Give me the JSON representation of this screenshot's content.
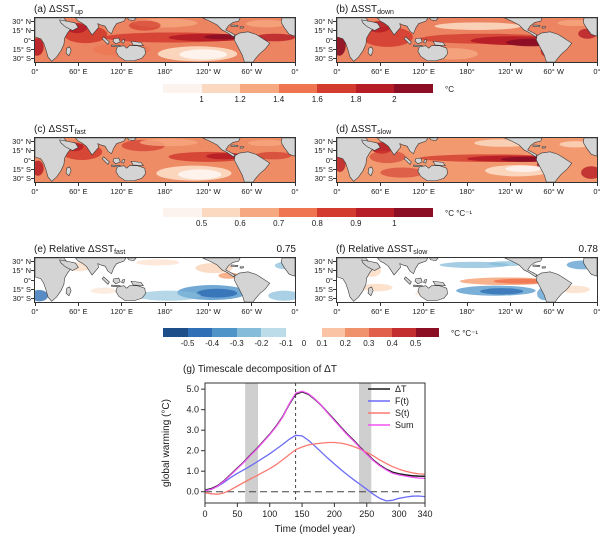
{
  "figure": {
    "maps": {
      "lat_ticks": [
        "30° N",
        "15° N",
        "0°",
        "15° S",
        "30° S"
      ],
      "lon_ticks": [
        "0°",
        "60° E",
        "120° E",
        "180°",
        "120° W",
        "60° W",
        "0°"
      ],
      "land_color": "#d4d4d4",
      "panels": [
        {
          "id": "(a)",
          "main": "ΔSST",
          "sub": "up",
          "corr": ""
        },
        {
          "id": "(b)",
          "main": "ΔSST",
          "sub": "down",
          "corr": ""
        },
        {
          "id": "(c)",
          "main": "ΔSST",
          "sub": "fast",
          "corr": ""
        },
        {
          "id": "(d)",
          "main": "ΔSST",
          "sub": "slow",
          "corr": ""
        },
        {
          "id": "(e)",
          "main": "Relative ΔSST",
          "sub": "fast",
          "corr": "0.75"
        },
        {
          "id": "(f)",
          "main": "Relative ΔSST",
          "sub": "slow",
          "corr": "0.78"
        }
      ]
    },
    "colorbars": [
      {
        "ticks": [
          "1",
          "1.2",
          "1.4",
          "1.6",
          "1.8",
          "2"
        ],
        "unit": "°C",
        "colors": [
          "#fdf3ee",
          "#fbd9c1",
          "#f6a880",
          "#ee7550",
          "#d23b2e",
          "#b71d26",
          "#8b0e25"
        ]
      },
      {
        "ticks": [
          "0.5",
          "0.6",
          "0.7",
          "0.8",
          "0.9",
          "1"
        ],
        "unit": "°C °C⁻¹",
        "colors": [
          "#fdf3ee",
          "#fbd9c1",
          "#f6a880",
          "#ee7550",
          "#d23b2e",
          "#b71d26",
          "#8b0e25"
        ]
      },
      {
        "neg_ticks": [
          "-0.5",
          "-0.4",
          "-0.3",
          "-0.2",
          "-0.1"
        ],
        "zero": "0",
        "pos_ticks": [
          "0.1",
          "0.2",
          "0.3",
          "0.4",
          "0.5"
        ],
        "unit": "°C °C⁻¹",
        "neg_colors": [
          "#1d4e89",
          "#2f6fb5",
          "#4e94c9",
          "#85bcd9",
          "#bddcea"
        ],
        "pos_colors": [
          "#f9c3a4",
          "#f0936c",
          "#e0604a",
          "#c42d30",
          "#8b0e25"
        ]
      }
    ]
  },
  "chart_data": {
    "type": "line",
    "title": "(g) Timescale decomposition of ΔT",
    "xlabel": "Time (model year)",
    "ylabel": "global warming (°C)",
    "xlim": [
      0,
      340
    ],
    "ylim": [
      -0.55,
      5.3
    ],
    "xticks": [
      0,
      50,
      100,
      150,
      200,
      250,
      300,
      340
    ],
    "yticks": [
      "0.0",
      "1.0",
      "2.0",
      "3.0",
      "4.0",
      "5.0"
    ],
    "ytick_values": [
      0,
      1,
      2,
      3,
      4,
      5
    ],
    "grid": false,
    "legend_position": "top-right",
    "vline_x": 140,
    "hline_y": 0,
    "shaded_bands": [
      [
        62,
        82
      ],
      [
        238,
        257
      ]
    ],
    "band_color": "#cfcfcf",
    "x": [
      0,
      10,
      20,
      30,
      40,
      50,
      60,
      70,
      80,
      90,
      100,
      110,
      120,
      130,
      140,
      150,
      160,
      170,
      180,
      190,
      200,
      210,
      220,
      230,
      240,
      250,
      260,
      270,
      280,
      290,
      300,
      310,
      320,
      330,
      340
    ],
    "series": [
      {
        "name": "ΔT",
        "color": "#1a1a1a",
        "values": [
          0.08,
          0.15,
          0.3,
          0.55,
          0.85,
          1.15,
          1.45,
          1.78,
          2.1,
          2.45,
          2.8,
          3.2,
          3.65,
          4.25,
          4.75,
          4.87,
          4.75,
          4.5,
          4.2,
          3.85,
          3.5,
          3.15,
          2.8,
          2.5,
          2.15,
          1.85,
          1.55,
          1.3,
          1.1,
          0.95,
          0.87,
          0.82,
          0.78,
          0.76,
          0.75
        ]
      },
      {
        "name": "F(t)",
        "color": "#6b6bf5",
        "values": [
          0.05,
          0.12,
          0.27,
          0.47,
          0.7,
          0.9,
          1.07,
          1.25,
          1.45,
          1.65,
          1.85,
          2.08,
          2.3,
          2.55,
          2.75,
          2.72,
          2.5,
          2.22,
          1.92,
          1.63,
          1.35,
          1.08,
          0.82,
          0.58,
          0.35,
          0.12,
          -0.12,
          -0.32,
          -0.45,
          -0.42,
          -0.32,
          -0.26,
          -0.22,
          -0.21,
          -0.24
        ]
      },
      {
        "name": "S(t)",
        "color": "#fa7a72",
        "values": [
          -0.05,
          -0.1,
          -0.12,
          -0.05,
          0.1,
          0.28,
          0.45,
          0.62,
          0.78,
          0.95,
          1.12,
          1.32,
          1.55,
          1.8,
          2.05,
          2.18,
          2.28,
          2.33,
          2.37,
          2.4,
          2.4,
          2.37,
          2.3,
          2.2,
          2.08,
          1.92,
          1.75,
          1.55,
          1.38,
          1.22,
          1.1,
          1.0,
          0.92,
          0.87,
          0.86
        ]
      },
      {
        "name": "Sum",
        "color": "#f053f0",
        "values": [
          0.05,
          0.12,
          0.28,
          0.53,
          0.83,
          1.13,
          1.43,
          1.76,
          2.08,
          2.43,
          2.78,
          3.18,
          3.63,
          4.27,
          4.8,
          4.9,
          4.78,
          4.52,
          4.2,
          3.83,
          3.47,
          3.12,
          2.77,
          2.47,
          2.12,
          1.82,
          1.52,
          1.27,
          1.07,
          0.9,
          0.82,
          0.76,
          0.71,
          0.67,
          0.65
        ]
      }
    ]
  }
}
